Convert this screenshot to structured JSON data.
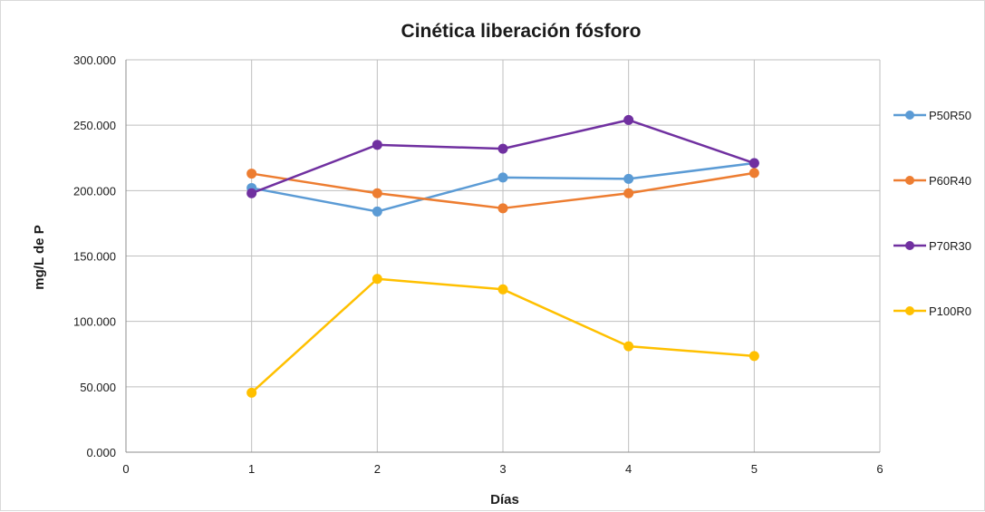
{
  "chart_data": {
    "type": "scatter",
    "title": "Cinética liberación fósforo",
    "xlabel": "Días",
    "ylabel": "mg/L de P",
    "xlim": [
      0,
      6
    ],
    "ylim": [
      0,
      300
    ],
    "x_ticks": [
      "0",
      "1",
      "2",
      "3",
      "4",
      "5",
      "6"
    ],
    "y_ticks": [
      "0.000",
      "50.000",
      "100.000",
      "150.000",
      "200.000",
      "250.000",
      "300.000"
    ],
    "grid": true,
    "legend_position": "right",
    "x": [
      1,
      2,
      3,
      4,
      5
    ],
    "series": [
      {
        "name": "P50R50",
        "color": "#5B9BD5",
        "values": [
          202,
          184,
          210,
          209,
          221
        ]
      },
      {
        "name": "P60R40",
        "color": "#ED7D31",
        "values": [
          213,
          198,
          186.5,
          198,
          213.5
        ]
      },
      {
        "name": "P70R30",
        "color": "#7030A0",
        "values": [
          198,
          235,
          232,
          254,
          221
        ]
      },
      {
        "name": "P100R0",
        "color": "#FFC000",
        "values": [
          45.5,
          132.5,
          124.5,
          81,
          73.5
        ]
      }
    ]
  }
}
